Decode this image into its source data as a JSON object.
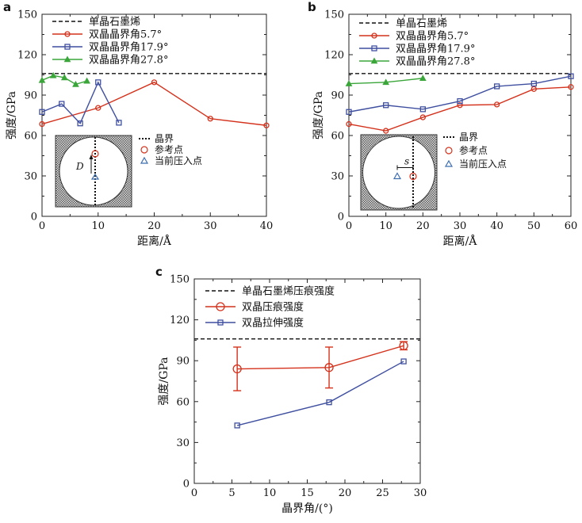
{
  "chart_data": [
    {
      "panel": "a",
      "type": "line",
      "xlabel": "距离/Å",
      "ylabel": "强度/GPa",
      "xlim": [
        0,
        40
      ],
      "ylim": [
        0,
        150
      ],
      "xticks": [
        "0",
        "10",
        "20",
        "30",
        "40"
      ],
      "yticks": [
        "0",
        "30",
        "60",
        "90",
        "120",
        "150"
      ],
      "reference": {
        "name": "单晶石墨烯",
        "value": 106
      },
      "series": [
        {
          "name": "双晶晶界角5.7°",
          "color": "#d4321c",
          "marker": "circle",
          "x": [
            0,
            10,
            20,
            30,
            40
          ],
          "y": [
            68.5,
            80.5,
            99.5,
            72.5,
            67.5
          ]
        },
        {
          "name": "双晶晶界角17.9°",
          "color": "#3f4fa0",
          "marker": "square",
          "x": [
            0,
            3.5,
            6.8,
            10,
            13.7
          ],
          "y": [
            77.5,
            83.5,
            69,
            99.5,
            69.5
          ]
        },
        {
          "name": "双晶晶界角27.8°",
          "color": "#3aa63a",
          "marker": "triangle",
          "x": [
            0,
            2,
            4,
            6,
            8
          ],
          "y": [
            101,
            104.5,
            103,
            98,
            100.5
          ]
        }
      ],
      "inset": {
        "labels": [
          "晶界",
          "参考点",
          "当前压入点"
        ],
        "symbol": "D"
      }
    },
    {
      "panel": "b",
      "type": "line",
      "xlabel": "距离/Å",
      "ylabel": "强度/GPa",
      "xlim": [
        0,
        60
      ],
      "ylim": [
        0,
        150
      ],
      "xticks": [
        "0",
        "10",
        "20",
        "30",
        "40",
        "50",
        "60"
      ],
      "yticks": [
        "0",
        "30",
        "60",
        "90",
        "120",
        "150"
      ],
      "reference": {
        "name": "单晶石墨烯",
        "value": 106
      },
      "series": [
        {
          "name": "双晶晶界角5.7°",
          "color": "#d4321c",
          "marker": "circle",
          "x": [
            0,
            10,
            20,
            30,
            40,
            50,
            60
          ],
          "y": [
            68.5,
            63.5,
            73.5,
            82.5,
            83,
            94.5,
            96
          ]
        },
        {
          "name": "双晶晶界角17.9°",
          "color": "#3f4fa0",
          "marker": "square",
          "x": [
            0,
            10,
            20,
            30,
            40,
            50,
            60
          ],
          "y": [
            77.5,
            82.5,
            79.5,
            85.5,
            96.5,
            98.5,
            104
          ]
        },
        {
          "name": "双晶晶界角27.8°",
          "color": "#3aa63a",
          "marker": "triangle",
          "x": [
            0,
            10,
            20
          ],
          "y": [
            98.5,
            99.5,
            102.5
          ]
        }
      ],
      "inset": {
        "labels": [
          "晶界",
          "参考点",
          "当前压入点"
        ],
        "symbol": "s"
      }
    },
    {
      "panel": "c",
      "type": "line",
      "xlabel": "晶界角/(°)",
      "ylabel": "强度/GPa",
      "xlim": [
        0,
        30
      ],
      "ylim": [
        0,
        150
      ],
      "xticks": [
        "0",
        "5",
        "10",
        "15",
        "20",
        "25",
        "30"
      ],
      "yticks": [
        "0",
        "30",
        "60",
        "90",
        "120",
        "150"
      ],
      "reference": {
        "name": "单晶石墨烯压痕强度",
        "value": 106
      },
      "series": [
        {
          "name": "双晶压痕强度",
          "color": "#d4321c",
          "marker": "circle",
          "x": [
            5.7,
            17.9,
            27.8
          ],
          "y": [
            84,
            85,
            101
          ],
          "err": [
            16,
            15,
            3
          ]
        },
        {
          "name": "双晶拉伸强度",
          "color": "#3f4fa0",
          "marker": "square",
          "x": [
            5.7,
            17.9,
            27.8
          ],
          "y": [
            42.5,
            59.5,
            89.5
          ]
        }
      ]
    }
  ]
}
